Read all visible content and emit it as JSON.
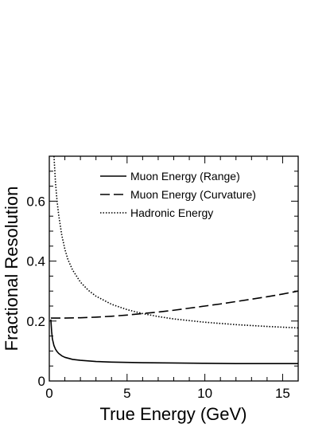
{
  "chart_data": {
    "type": "line",
    "xlabel": "True Energy (GeV)",
    "ylabel": "Fractional Resolution",
    "xlim": [
      0,
      16
    ],
    "ylim": [
      0,
      0.75
    ],
    "x_ticks": [
      0,
      5,
      10,
      15
    ],
    "x_tick_labels": [
      "0",
      "5",
      "10",
      "15"
    ],
    "y_ticks": [
      0,
      0.2,
      0.4,
      0.6
    ],
    "y_tick_labels": [
      "0",
      "0.2",
      "0.4",
      "0.6"
    ],
    "grid": false,
    "legend_position": "top-right",
    "series": [
      {
        "name": "Muon Energy (Range)",
        "style": "solid",
        "color": "#000000",
        "x": [
          0.1,
          0.15,
          0.2,
          0.3,
          0.4,
          0.5,
          0.6,
          0.8,
          1,
          1.5,
          2,
          3,
          4,
          6,
          8,
          10,
          12,
          14,
          16
        ],
        "y": [
          0.205,
          0.165,
          0.14,
          0.118,
          0.106,
          0.098,
          0.092,
          0.084,
          0.079,
          0.072,
          0.069,
          0.065,
          0.063,
          0.061,
          0.06,
          0.059,
          0.058,
          0.058,
          0.058
        ]
      },
      {
        "name": "Muon Energy (Curvature)",
        "style": "dashed",
        "color": "#000000",
        "x": [
          0.1,
          1,
          2,
          3,
          4,
          5,
          6,
          7,
          8,
          9,
          10,
          11,
          12,
          13,
          14,
          15,
          16
        ],
        "y": [
          0.21,
          0.21,
          0.211,
          0.213,
          0.216,
          0.22,
          0.225,
          0.23,
          0.236,
          0.243,
          0.25,
          0.257,
          0.265,
          0.273,
          0.281,
          0.29,
          0.3
        ]
      },
      {
        "name": "Hadronic Energy",
        "style": "dotted",
        "color": "#000000",
        "x": [
          0.3,
          0.4,
          0.5,
          0.6,
          0.8,
          1,
          1.2,
          1.5,
          2,
          2.5,
          3,
          4,
          5,
          6,
          7,
          8,
          10,
          12,
          14,
          16
        ],
        "y": [
          0.75,
          0.66,
          0.6,
          0.555,
          0.487,
          0.44,
          0.405,
          0.37,
          0.33,
          0.303,
          0.283,
          0.256,
          0.238,
          0.225,
          0.215,
          0.207,
          0.196,
          0.188,
          0.182,
          0.177
        ]
      }
    ]
  }
}
